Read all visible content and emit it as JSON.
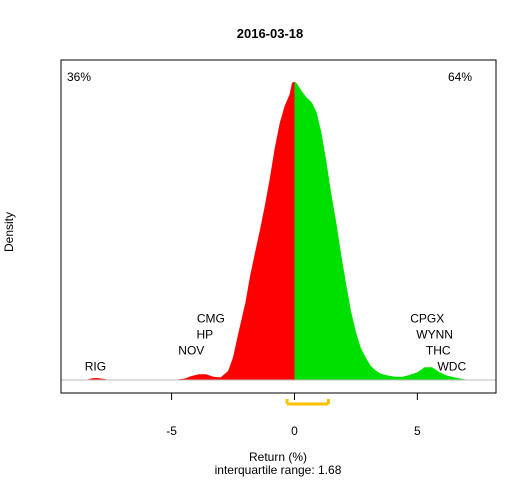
{
  "chart_data": {
    "type": "area",
    "title": "2016-03-18",
    "xlabel": "Return (%)",
    "ylabel": "Density",
    "subtitle": "interquartile range: 1.68",
    "xlim": [
      -9.5,
      8.2
    ],
    "ylim": [
      0,
      0.48
    ],
    "xticks": [
      -5,
      0,
      5
    ],
    "grid": false,
    "split_at": 0,
    "left_pct": "36%",
    "right_pct": "64%",
    "colors": {
      "negative": "#ff0000",
      "positive": "#00e000",
      "iqr": "#ffc000",
      "baseline": "#bebebe"
    },
    "iqr": [
      -0.3,
      1.38
    ],
    "density": {
      "x": [
        -8.5,
        -8.2,
        -8.0,
        -7.8,
        -7.5,
        -7.0,
        -6.0,
        -5.0,
        -4.5,
        -4.2,
        -3.9,
        -3.6,
        -3.3,
        -3.0,
        -2.7,
        -2.5,
        -2.3,
        -2.0,
        -1.8,
        -1.6,
        -1.4,
        -1.2,
        -1.0,
        -0.8,
        -0.6,
        -0.4,
        -0.2,
        -0.1,
        0.0,
        0.1,
        0.3,
        0.5,
        0.7,
        0.9,
        1.1,
        1.3,
        1.5,
        1.7,
        1.9,
        2.1,
        2.3,
        2.5,
        2.7,
        2.9,
        3.1,
        3.3,
        3.5,
        3.8,
        4.1,
        4.4,
        4.7,
        5.0,
        5.3,
        5.6,
        5.9,
        6.2,
        6.5,
        6.8,
        7.1
      ],
      "y": [
        0,
        0.003,
        0.003,
        0.002,
        0,
        0,
        0,
        0,
        0.002,
        0.006,
        0.009,
        0.009,
        0.005,
        0.004,
        0.014,
        0.035,
        0.07,
        0.12,
        0.163,
        0.2,
        0.235,
        0.273,
        0.315,
        0.362,
        0.4,
        0.427,
        0.445,
        0.463,
        0.465,
        0.462,
        0.45,
        0.44,
        0.433,
        0.417,
        0.385,
        0.34,
        0.29,
        0.245,
        0.195,
        0.15,
        0.107,
        0.075,
        0.05,
        0.035,
        0.022,
        0.015,
        0.01,
        0.007,
        0.005,
        0.005,
        0.008,
        0.012,
        0.02,
        0.02,
        0.012,
        0.007,
        0.004,
        0.002,
        0
      ]
    },
    "annotations": [
      {
        "label": "RIG",
        "x": -8.1,
        "y": 0.021
      },
      {
        "label": "NOV",
        "x": -4.2,
        "y": 0.046
      },
      {
        "label": "HP",
        "x": -3.65,
        "y": 0.071
      },
      {
        "label": "CMG",
        "x": -3.4,
        "y": 0.096
      },
      {
        "label": "CPGX",
        "x": 5.4,
        "y": 0.096
      },
      {
        "label": "WYNN",
        "x": 5.7,
        "y": 0.071
      },
      {
        "label": "THC",
        "x": 5.85,
        "y": 0.046
      },
      {
        "label": "WDC",
        "x": 6.4,
        "y": 0.021
      }
    ]
  }
}
